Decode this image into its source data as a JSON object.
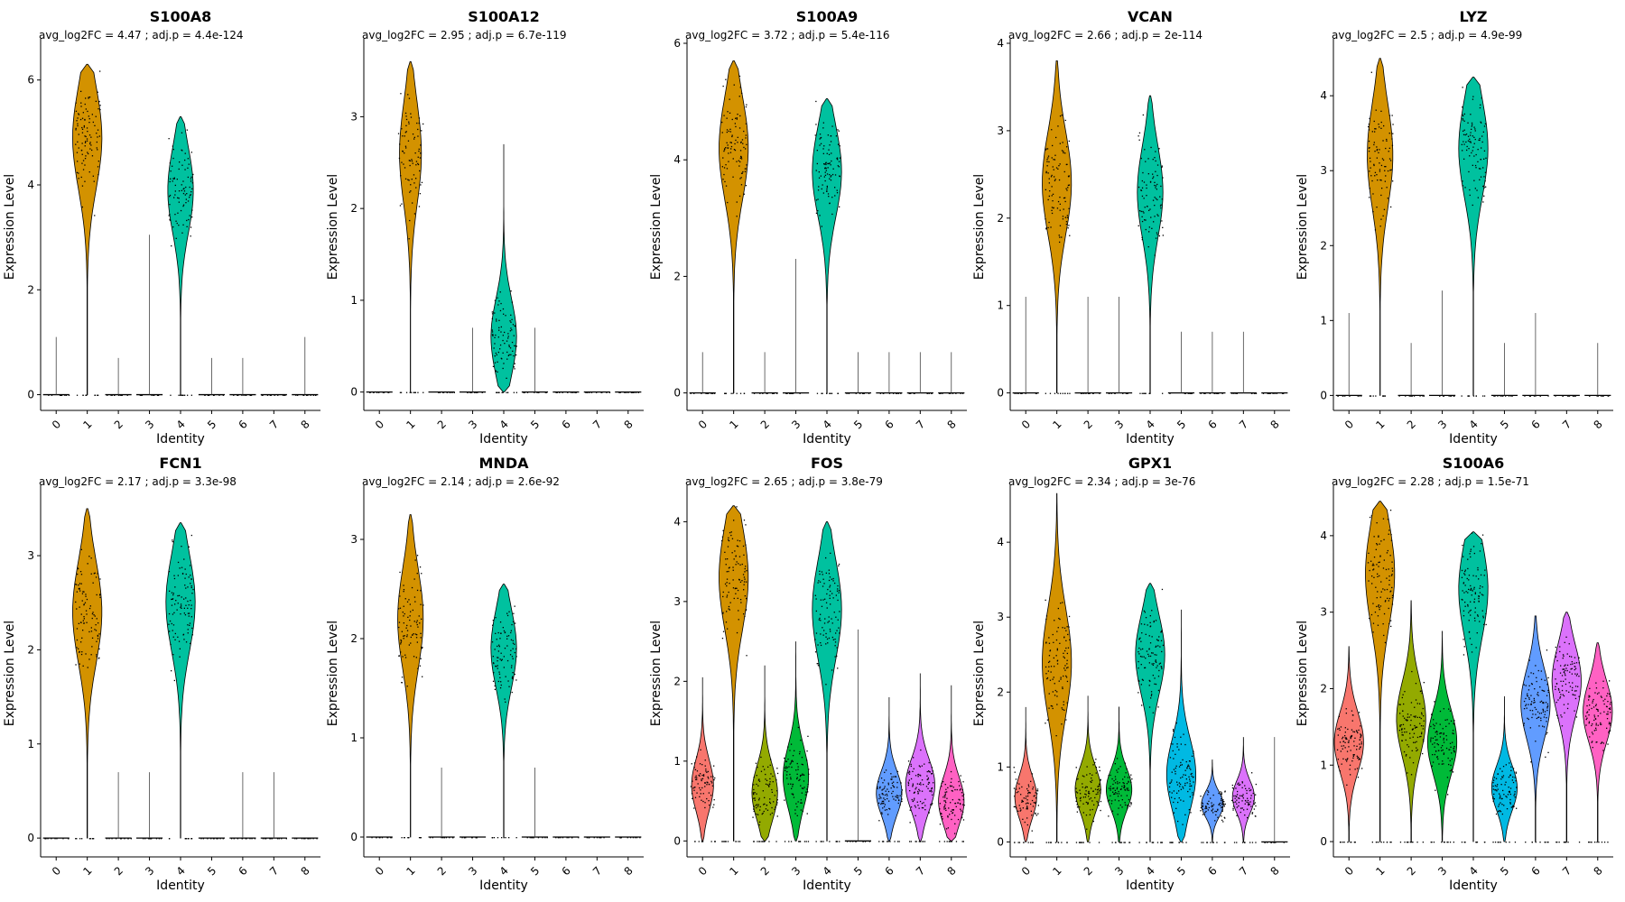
{
  "chart_data": [
    {
      "type": "violin",
      "title": "S100A8",
      "subtitle": "avg_log2FC = 4.47 ; adj.p = 4.4e-124",
      "xlabel": "Identity",
      "ylabel": "Expression Level",
      "categories": [
        "0",
        "1",
        "2",
        "3",
        "4",
        "5",
        "6",
        "7",
        "8"
      ],
      "ylim": [
        -0.3,
        6.7
      ],
      "yticks": [
        0,
        2,
        4,
        6
      ],
      "max": [
        1.1,
        6.3,
        0.7,
        3.05,
        5.3,
        0.7,
        0.7,
        0.0,
        1.1
      ],
      "mode": [
        0,
        4.9,
        0,
        0,
        3.9,
        0,
        0,
        0,
        0
      ],
      "width": [
        0,
        0.4,
        0,
        0,
        0.35,
        0,
        0,
        0,
        0
      ]
    },
    {
      "type": "violin",
      "title": "S100A12",
      "subtitle": "avg_log2FC = 2.95 ; adj.p = 6.7e-119",
      "xlabel": "Identity",
      "ylabel": "Expression Level",
      "categories": [
        "0",
        "1",
        "2",
        "3",
        "4",
        "5",
        "6",
        "7",
        "8"
      ],
      "ylim": [
        -0.2,
        3.8
      ],
      "yticks": [
        0,
        1,
        2,
        3
      ],
      "max": [
        0.0,
        3.6,
        0.0,
        0.7,
        2.7,
        0.7,
        0.0,
        0.0,
        0.0
      ],
      "mode": [
        0,
        2.6,
        0,
        0,
        0.6,
        0,
        0,
        0,
        0
      ],
      "width": [
        0,
        0.3,
        0,
        0,
        0.35,
        0,
        0,
        0,
        0
      ]
    },
    {
      "type": "violin",
      "title": "S100A9",
      "subtitle": "avg_log2FC = 3.72 ; adj.p = 5.4e-116",
      "xlabel": "Identity",
      "ylabel": "Expression Level",
      "categories": [
        "0",
        "1",
        "2",
        "3",
        "4",
        "5",
        "6",
        "7",
        "8"
      ],
      "ylim": [
        -0.3,
        6.0
      ],
      "yticks": [
        0,
        2,
        4,
        6
      ],
      "max": [
        0.7,
        5.7,
        0.7,
        2.3,
        5.05,
        0.7,
        0.7,
        0.7,
        0.7
      ],
      "mode": [
        0,
        4.2,
        0,
        0,
        3.8,
        0,
        0,
        0,
        0
      ],
      "width": [
        0,
        0.4,
        0,
        0,
        0.4,
        0,
        0,
        0,
        0
      ]
    },
    {
      "type": "violin",
      "title": "VCAN",
      "subtitle": "avg_log2FC = 2.66 ; adj.p = 2e-114",
      "xlabel": "Identity",
      "ylabel": "Expression Level",
      "categories": [
        "0",
        "1",
        "2",
        "3",
        "4",
        "5",
        "6",
        "7",
        "8"
      ],
      "ylim": [
        -0.2,
        4.0
      ],
      "yticks": [
        0,
        1,
        2,
        3,
        4
      ],
      "max": [
        1.1,
        3.8,
        1.1,
        1.1,
        3.4,
        0.7,
        0.7,
        0.7,
        0.0
      ],
      "mode": [
        0,
        2.4,
        0,
        0,
        2.3,
        0,
        0,
        0,
        0
      ],
      "width": [
        0,
        0.4,
        0,
        0,
        0.35,
        0,
        0,
        0,
        0
      ]
    },
    {
      "type": "violin",
      "title": "LYZ",
      "subtitle": "avg_log2FC = 2.5 ; adj.p = 4.9e-99",
      "xlabel": "Identity",
      "ylabel": "Expression Level",
      "categories": [
        "0",
        "1",
        "2",
        "3",
        "4",
        "5",
        "6",
        "7",
        "8"
      ],
      "ylim": [
        -0.2,
        4.7
      ],
      "yticks": [
        0,
        1,
        2,
        3,
        4
      ],
      "max": [
        1.1,
        4.5,
        0.7,
        1.4,
        4.25,
        0.7,
        1.1,
        0.0,
        0.7
      ],
      "mode": [
        0,
        3.2,
        0,
        0,
        3.3,
        0,
        0,
        0,
        0
      ],
      "width": [
        0,
        0.35,
        0,
        0,
        0.4,
        0,
        0,
        0,
        0
      ]
    },
    {
      "type": "violin",
      "title": "FCN1",
      "subtitle": "avg_log2FC = 2.17 ; adj.p = 3.3e-98",
      "xlabel": "Identity",
      "ylabel": "Expression Level",
      "categories": [
        "0",
        "1",
        "2",
        "3",
        "4",
        "5",
        "6",
        "7",
        "8"
      ],
      "ylim": [
        -0.2,
        3.7
      ],
      "yticks": [
        0,
        1,
        2,
        3
      ],
      "max": [
        0.0,
        3.5,
        0.7,
        0.7,
        3.35,
        0.0,
        0.7,
        0.7,
        0.0
      ],
      "mode": [
        0,
        2.4,
        0,
        0,
        2.5,
        0,
        0,
        0,
        0
      ],
      "width": [
        0,
        0.4,
        0,
        0,
        0.4,
        0,
        0,
        0,
        0
      ]
    },
    {
      "type": "violin",
      "title": "MNDA",
      "subtitle": "avg_log2FC = 2.14 ; adj.p = 2.6e-92",
      "xlabel": "Identity",
      "ylabel": "Expression Level",
      "categories": [
        "0",
        "1",
        "2",
        "3",
        "4",
        "5",
        "6",
        "7",
        "8"
      ],
      "ylim": [
        -0.2,
        3.5
      ],
      "yticks": [
        0,
        1,
        2,
        3
      ],
      "max": [
        0.0,
        3.25,
        0.7,
        0.0,
        2.55,
        0.7,
        0.0,
        0.0,
        0.0
      ],
      "mode": [
        0,
        2.2,
        0,
        0,
        1.9,
        0,
        0,
        0,
        0
      ],
      "width": [
        0,
        0.35,
        0,
        0,
        0.35,
        0,
        0,
        0,
        0
      ]
    },
    {
      "type": "violin",
      "title": "FOS",
      "subtitle": "avg_log2FC = 2.65 ; adj.p = 3.8e-79",
      "xlabel": "Identity",
      "ylabel": "Expression Level",
      "categories": [
        "0",
        "1",
        "2",
        "3",
        "4",
        "5",
        "6",
        "7",
        "8"
      ],
      "ylim": [
        -0.2,
        4.4
      ],
      "yticks": [
        0,
        1,
        2,
        3,
        4
      ],
      "max": [
        2.05,
        4.2,
        2.2,
        2.5,
        4.0,
        2.65,
        1.8,
        2.1,
        1.95
      ],
      "mode": [
        0.7,
        3.3,
        0.6,
        0.8,
        2.9,
        0.7,
        0.6,
        0.7,
        0.5
      ],
      "width": [
        0.3,
        0.4,
        0.35,
        0.35,
        0.4,
        0,
        0.35,
        0.4,
        0.35
      ]
    },
    {
      "type": "violin",
      "title": "GPX1",
      "subtitle": "avg_log2FC = 2.34 ; adj.p = 3e-76",
      "xlabel": "Identity",
      "ylabel": "Expression Level",
      "categories": [
        "0",
        "1",
        "2",
        "3",
        "4",
        "5",
        "6",
        "7",
        "8"
      ],
      "ylim": [
        -0.2,
        4.7
      ],
      "yticks": [
        0,
        1,
        2,
        3,
        4
      ],
      "max": [
        1.8,
        4.65,
        1.95,
        1.8,
        3.45,
        3.1,
        1.1,
        1.4,
        1.4
      ],
      "mode": [
        0.6,
        2.4,
        0.7,
        0.7,
        2.5,
        0.9,
        0.5,
        0.6,
        0
      ],
      "width": [
        0.3,
        0.4,
        0.35,
        0.35,
        0.4,
        0.4,
        0.3,
        0.3,
        0
      ]
    },
    {
      "type": "violin",
      "title": "S100A6",
      "subtitle": "avg_log2FC = 2.28 ; adj.p = 1.5e-71",
      "xlabel": "Identity",
      "ylabel": "Expression Level",
      "categories": [
        "0",
        "1",
        "2",
        "3",
        "4",
        "5",
        "6",
        "7",
        "8"
      ],
      "ylim": [
        -0.2,
        4.6
      ],
      "yticks": [
        0,
        1,
        2,
        3,
        4
      ],
      "max": [
        2.55,
        4.45,
        3.15,
        2.75,
        4.05,
        1.9,
        2.95,
        3.0,
        2.6
      ],
      "mode": [
        1.3,
        3.5,
        1.6,
        1.3,
        3.3,
        0.7,
        1.8,
        2.1,
        1.7
      ],
      "width": [
        0.4,
        0.4,
        0.4,
        0.4,
        0.4,
        0.35,
        0.4,
        0.4,
        0.4
      ]
    }
  ],
  "palette": [
    "#F8766D",
    "#D39200",
    "#93AA00",
    "#00BA38",
    "#00C19F",
    "#00B9E3",
    "#619CFF",
    "#DB72FB",
    "#FF61C3"
  ]
}
